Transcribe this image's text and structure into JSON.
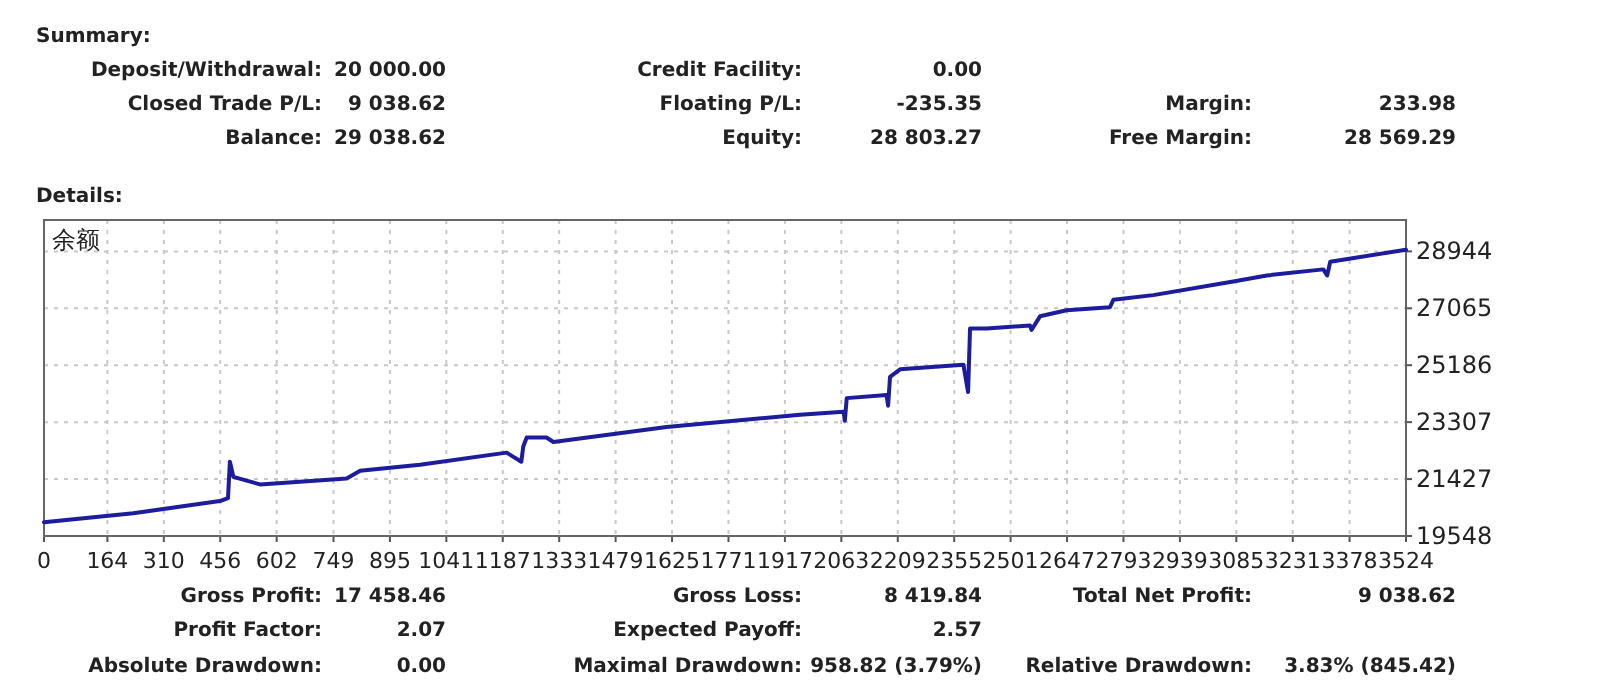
{
  "chart_data": {
    "type": "line",
    "title": "余额",
    "x": [
      0,
      231,
      455,
      476,
      481,
      490,
      559,
      783,
      818,
      973,
      1197,
      1235,
      1240,
      1249,
      1300,
      1318,
      1611,
      1956,
      2069,
      2072,
      2077,
      2180,
      2184,
      2189,
      2215,
      2379,
      2391,
      2396,
      2439,
      2551,
      2555,
      2577,
      2646,
      2758,
      2767,
      2870,
      3077,
      3164,
      3310,
      3320,
      3328,
      3524
    ],
    "series": [
      {
        "color": "#1c1c9c",
        "values": [
          20000,
          20300,
          20700,
          20800,
          22000,
          21500,
          21250,
          21450,
          21700,
          21900,
          22300,
          22000,
          22500,
          22800,
          22800,
          22650,
          23150,
          23550,
          23650,
          23350,
          24100,
          24200,
          23850,
          24800,
          25050,
          25200,
          24300,
          26400,
          26400,
          26500,
          26350,
          26800,
          27000,
          27100,
          27350,
          27500,
          27950,
          28150,
          28350,
          28150,
          28600,
          29000
        ]
      }
    ],
    "xlim": [
      0,
      3524
    ],
    "ylim": [
      19548,
      29980
    ],
    "xticks": [
      0,
      164,
      310,
      456,
      602,
      749,
      895,
      1041,
      1187,
      1333,
      1479,
      1625,
      1771,
      1917,
      2063,
      2209,
      2355,
      2501,
      2647,
      2793,
      2939,
      3085,
      3231,
      3378,
      3524
    ],
    "yticks": [
      19548,
      21427,
      23307,
      25186,
      27065,
      28944
    ],
    "grid": true,
    "annotations": [
      "Summary:",
      "Deposit/Withdrawal:",
      "20 000.00",
      "Credit Facility:",
      "0.00",
      "Closed Trade P/L:",
      "9 038.62",
      "Floating P/L:",
      "-235.35",
      "Margin:",
      "233.98",
      "Balance:",
      "29 038.62",
      "Equity:",
      "28 803.27",
      "Free Margin:",
      "28 569.29",
      "Details:",
      "Gross Profit:",
      "17 458.46",
      "Gross Loss:",
      "8 419.84",
      "Total Net Profit:",
      "9 038.62",
      "Profit Factor:",
      "2.07",
      "Expected Payoff:",
      "2.57",
      "Absolute Drawdown:",
      "0.00",
      "Maximal Drawdown:",
      "958.82 (3.79%)",
      "Relative Drawdown:",
      "3.83% (845.42)"
    ]
  }
}
